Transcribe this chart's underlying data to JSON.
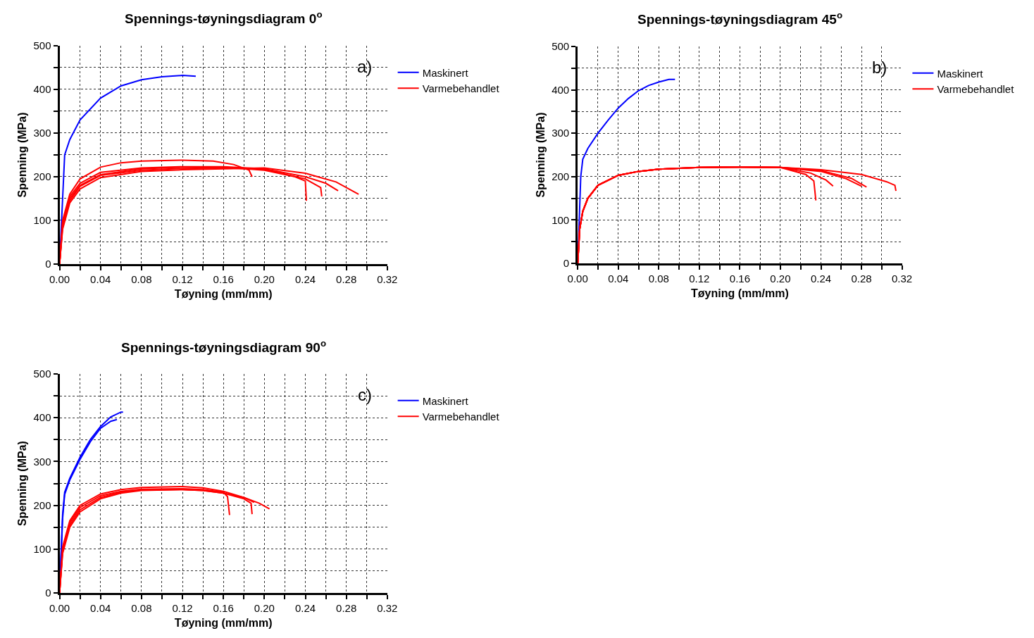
{
  "chart_data": [
    {
      "type": "line",
      "title": "Spennings-tøyningsdiagram 0$^{o}$",
      "xlabel": "Tøyning (mm/mm)",
      "ylabel": "Spenning (MPa)",
      "annotations": [
        "a)"
      ],
      "legend": "top right",
      "grid": true,
      "marker": "none",
      "line_style": "solid",
      "xlim": [
        0,
        0.32
      ],
      "ylim": [
        0,
        500
      ],
      "xticks": [
        {
          "value": 0,
          "label": "0.00"
        },
        {
          "value": 0.02,
          "label": null
        },
        {
          "value": 0.04,
          "label": "0.04"
        },
        {
          "value": 0.06,
          "label": null
        },
        {
          "value": 0.08,
          "label": "0.08"
        },
        {
          "value": 0.1,
          "label": null
        },
        {
          "value": 0.12,
          "label": "0.12"
        },
        {
          "value": 0.14,
          "label": null
        },
        {
          "value": 0.16,
          "label": "0.16"
        },
        {
          "value": 0.18,
          "label": null
        },
        {
          "value": 0.2,
          "label": "0.20"
        },
        {
          "value": 0.22,
          "label": null
        },
        {
          "value": 0.24,
          "label": "0.24"
        },
        {
          "value": 0.26,
          "label": null
        },
        {
          "value": 0.28,
          "label": "0.28"
        },
        {
          "value": 0.3,
          "label": null
        },
        {
          "value": 0.32,
          "label": "0.32"
        }
      ],
      "yticks": [
        0,
        {
          "value": 50,
          "label": null
        },
        100,
        {
          "value": 150,
          "label": null
        },
        200,
        {
          "value": 250,
          "label": null
        },
        300,
        {
          "value": 350,
          "label": null
        },
        400,
        {
          "value": 450,
          "label": null
        },
        500
      ],
      "series": [
        {
          "name": "Maskinert",
          "color": "#0000ff",
          "x": [
            0,
            0.003,
            0.005,
            0.01,
            0.02,
            0.04,
            0.06,
            0.08,
            0.1,
            0.12,
            0.133
          ],
          "values": [
            0,
            150,
            250,
            285,
            330,
            380,
            408,
            422,
            429,
            432,
            430
          ]
        },
        {
          "name": "Varmebehandlet",
          "color": "#ff0000",
          "x": [
            0,
            0.003,
            0.01,
            0.02,
            0.04,
            0.06,
            0.08,
            0.12,
            0.15,
            0.17,
            0.185,
            0.188
          ],
          "values": [
            0,
            100,
            160,
            195,
            222,
            232,
            236,
            238,
            236,
            228,
            215,
            200
          ]
        },
        {
          "color": "#ff0000",
          "x": [
            0,
            0.003,
            0.01,
            0.02,
            0.04,
            0.08,
            0.12,
            0.16,
            0.2,
            0.23,
            0.24,
            0.241
          ],
          "values": [
            0,
            90,
            150,
            180,
            205,
            218,
            222,
            222,
            215,
            200,
            190,
            145
          ]
        },
        {
          "color": "#ff0000",
          "x": [
            0,
            0.003,
            0.01,
            0.02,
            0.04,
            0.08,
            0.12,
            0.16,
            0.2,
            0.24,
            0.255,
            0.256
          ],
          "values": [
            0,
            85,
            145,
            178,
            203,
            215,
            219,
            220,
            217,
            195,
            175,
            155
          ]
        },
        {
          "color": "#ff0000",
          "x": [
            0,
            0.003,
            0.01,
            0.02,
            0.04,
            0.08,
            0.12,
            0.16,
            0.2,
            0.24,
            0.26,
            0.272
          ],
          "values": [
            0,
            95,
            155,
            185,
            210,
            220,
            223,
            223,
            218,
            200,
            185,
            168
          ]
        },
        {
          "color": "#ff0000",
          "x": [
            0,
            0.003,
            0.01,
            0.02,
            0.04,
            0.08,
            0.12,
            0.16,
            0.2,
            0.24,
            0.27,
            0.292
          ],
          "values": [
            0,
            80,
            140,
            172,
            198,
            212,
            216,
            218,
            220,
            208,
            188,
            160
          ]
        }
      ]
    },
    {
      "type": "line",
      "title": "Spennings-tøyningsdiagram 45$^{o}$",
      "xlabel": "Tøyning (mm/mm)",
      "ylabel": "Spenning (MPa)",
      "annotations": [
        "b)"
      ],
      "legend": "top right",
      "grid": true,
      "marker": "none",
      "line_style": "solid",
      "xlim": [
        0,
        0.32
      ],
      "ylim": [
        0,
        500
      ],
      "xticks": [
        {
          "value": 0,
          "label": "0.00"
        },
        {
          "value": 0.02,
          "label": null
        },
        {
          "value": 0.04,
          "label": "0.04"
        },
        {
          "value": 0.06,
          "label": null
        },
        {
          "value": 0.08,
          "label": "0.08"
        },
        {
          "value": 0.1,
          "label": null
        },
        {
          "value": 0.12,
          "label": "0.12"
        },
        {
          "value": 0.14,
          "label": null
        },
        {
          "value": 0.16,
          "label": "0.16"
        },
        {
          "value": 0.18,
          "label": null
        },
        {
          "value": 0.2,
          "label": "0.20"
        },
        {
          "value": 0.22,
          "label": null
        },
        {
          "value": 0.24,
          "label": "0.24"
        },
        {
          "value": 0.26,
          "label": null
        },
        {
          "value": 0.28,
          "label": "0.28"
        },
        {
          "value": 0.3,
          "label": null
        },
        {
          "value": 0.32,
          "label": "0.32"
        }
      ],
      "yticks": [
        0,
        {
          "value": 50,
          "label": null
        },
        100,
        {
          "value": 150,
          "label": null
        },
        200,
        {
          "value": 250,
          "label": null
        },
        300,
        {
          "value": 350,
          "label": null
        },
        400,
        {
          "value": 450,
          "label": null
        },
        500
      ],
      "series": [
        {
          "name": "Maskinert",
          "color": "#0000ff",
          "x": [
            0,
            0.003,
            0.005,
            0.01,
            0.02,
            0.03,
            0.04,
            0.05,
            0.06,
            0.07,
            0.08,
            0.09,
            0.096
          ],
          "values": [
            0,
            200,
            240,
            265,
            300,
            330,
            358,
            380,
            398,
            410,
            418,
            424,
            424
          ]
        },
        {
          "name": "Varmebehandlet",
          "color": "#ff0000",
          "x": [
            0,
            0.002,
            0.005,
            0.01,
            0.02,
            0.04,
            0.06,
            0.08,
            0.12,
            0.16,
            0.2,
            0.225,
            0.233,
            0.235
          ],
          "values": [
            0,
            80,
            120,
            150,
            180,
            203,
            212,
            217,
            221,
            222,
            221,
            205,
            190,
            145
          ]
        },
        {
          "color": "#ff0000",
          "x": [
            0,
            0.002,
            0.005,
            0.01,
            0.02,
            0.04,
            0.06,
            0.08,
            0.12,
            0.16,
            0.2,
            0.23,
            0.245,
            0.252
          ],
          "values": [
            0,
            80,
            120,
            150,
            180,
            203,
            212,
            217,
            221,
            222,
            221,
            208,
            192,
            178
          ]
        },
        {
          "color": "#ff0000",
          "x": [
            0,
            0.002,
            0.005,
            0.01,
            0.02,
            0.04,
            0.06,
            0.08,
            0.12,
            0.16,
            0.2,
            0.24,
            0.265,
            0.28
          ],
          "values": [
            0,
            80,
            120,
            150,
            180,
            203,
            212,
            217,
            221,
            222,
            221,
            212,
            195,
            178
          ]
        },
        {
          "color": "#ff0000",
          "x": [
            0,
            0.002,
            0.005,
            0.01,
            0.02,
            0.04,
            0.06,
            0.08,
            0.12,
            0.16,
            0.2,
            0.24,
            0.27,
            0.285
          ],
          "values": [
            0,
            80,
            120,
            150,
            180,
            203,
            212,
            217,
            221,
            222,
            221,
            214,
            196,
            176
          ]
        },
        {
          "color": "#ff0000",
          "x": [
            0,
            0.002,
            0.005,
            0.01,
            0.02,
            0.04,
            0.06,
            0.08,
            0.12,
            0.16,
            0.2,
            0.24,
            0.28,
            0.305,
            0.313,
            0.314
          ],
          "values": [
            0,
            80,
            120,
            150,
            180,
            203,
            212,
            217,
            221,
            222,
            221,
            216,
            205,
            188,
            180,
            167
          ]
        }
      ]
    },
    {
      "type": "line",
      "title": "Spennings-tøyningsdiagram 90$^{o}$",
      "xlabel": "Tøyning (mm/mm)",
      "ylabel": "Spenning (MPa)",
      "annotations": [
        "c)"
      ],
      "legend": "top right",
      "grid": true,
      "marker": "none",
      "line_style": "solid",
      "xlim": [
        0,
        0.32
      ],
      "ylim": [
        0,
        500
      ],
      "xticks": [
        {
          "value": 0,
          "label": "0.00"
        },
        {
          "value": 0.02,
          "label": null
        },
        {
          "value": 0.04,
          "label": "0.04"
        },
        {
          "value": 0.06,
          "label": null
        },
        {
          "value": 0.08,
          "label": "0.08"
        },
        {
          "value": 0.1,
          "label": null
        },
        {
          "value": 0.12,
          "label": "0.12"
        },
        {
          "value": 0.14,
          "label": null
        },
        {
          "value": 0.16,
          "label": "0.16"
        },
        {
          "value": 0.18,
          "label": null
        },
        {
          "value": 0.2,
          "label": "0.20"
        },
        {
          "value": 0.22,
          "label": null
        },
        {
          "value": 0.24,
          "label": "0.24"
        },
        {
          "value": 0.26,
          "label": null
        },
        {
          "value": 0.28,
          "label": "0.28"
        },
        {
          "value": 0.3,
          "label": null
        },
        {
          "value": 0.32,
          "label": "0.32"
        }
      ],
      "yticks": [
        0,
        {
          "value": 50,
          "label": null
        },
        100,
        {
          "value": 150,
          "label": null
        },
        200,
        {
          "value": 250,
          "label": null
        },
        300,
        {
          "value": 350,
          "label": null
        },
        400,
        {
          "value": 450,
          "label": null
        },
        500
      ],
      "series": [
        {
          "name": "Maskinert",
          "color": "#0000ff",
          "x": [
            0,
            0.003,
            0.005,
            0.01,
            0.02,
            0.03,
            0.04,
            0.05,
            0.06,
            0.062
          ],
          "values": [
            0,
            180,
            230,
            262,
            310,
            350,
            380,
            402,
            413,
            413
          ]
        },
        {
          "color": "#0000ff",
          "x": [
            0,
            0.003,
            0.005,
            0.01,
            0.02,
            0.03,
            0.04,
            0.05,
            0.056
          ],
          "values": [
            0,
            170,
            225,
            258,
            305,
            345,
            376,
            392,
            396
          ]
        },
        {
          "name": "Varmebehandlet",
          "color": "#ff0000",
          "x": [
            0,
            0.003,
            0.01,
            0.02,
            0.04,
            0.06,
            0.08,
            0.12,
            0.14,
            0.16,
            0.164,
            0.166
          ],
          "values": [
            0,
            100,
            160,
            195,
            222,
            232,
            237,
            238,
            236,
            230,
            220,
            178
          ]
        },
        {
          "color": "#ff0000",
          "x": [
            0,
            0.003,
            0.01,
            0.02,
            0.04,
            0.06,
            0.08,
            0.12,
            0.14,
            0.16,
            0.18,
            0.187,
            0.188
          ],
          "values": [
            0,
            95,
            155,
            190,
            218,
            230,
            235,
            236,
            234,
            228,
            215,
            205,
            180
          ]
        },
        {
          "color": "#ff0000",
          "x": [
            0,
            0.003,
            0.01,
            0.02,
            0.04,
            0.06,
            0.08,
            0.12,
            0.14,
            0.16,
            0.18,
            0.195,
            0.205
          ],
          "values": [
            0,
            90,
            150,
            185,
            215,
            228,
            234,
            236,
            234,
            228,
            218,
            205,
            192
          ]
        },
        {
          "color": "#ff0000",
          "x": [
            0,
            0.003,
            0.01,
            0.02,
            0.04,
            0.06,
            0.08,
            0.12,
            0.14,
            0.16,
            0.18,
            0.19
          ],
          "values": [
            0,
            105,
            165,
            200,
            226,
            236,
            241,
            243,
            240,
            232,
            218,
            207
          ]
        }
      ]
    }
  ]
}
